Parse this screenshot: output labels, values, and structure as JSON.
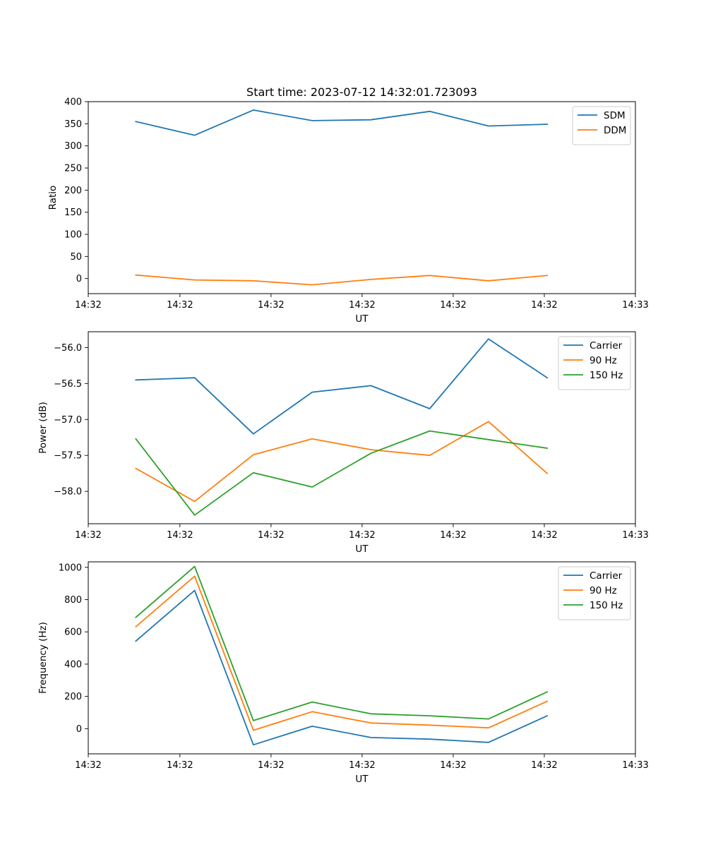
{
  "colors": {
    "blue": "#1f77b4",
    "orange": "#ff7f0e",
    "green": "#2ca02c"
  },
  "chart_data": [
    {
      "type": "line",
      "title": "Start time: 2023-07-12 14:32:01.723093",
      "xlabel": "UT",
      "ylabel": "Ratio",
      "x": [
        1,
        2,
        3,
        4,
        5,
        6,
        7,
        8
      ],
      "xlim": [
        0.19,
        9.5
      ],
      "xticks": [
        0.19,
        1.75,
        3.3,
        4.85,
        6.4,
        7.95,
        9.5
      ],
      "xtick_labels": [
        "14:32",
        "14:32",
        "14:32",
        "14:32",
        "14:32",
        "14:32",
        "14:33"
      ],
      "ylim": [
        -34,
        400
      ],
      "yticks": [
        0,
        50,
        100,
        150,
        200,
        250,
        300,
        350,
        400
      ],
      "ytick_labels": [
        "0",
        "50",
        "100",
        "150",
        "200",
        "250",
        "300",
        "350",
        "400"
      ],
      "legend_position": "top-right",
      "series": [
        {
          "name": "SDM",
          "color": "#1f77b4",
          "values": [
            355,
            324,
            381,
            357,
            359,
            378,
            345,
            349
          ]
        },
        {
          "name": "DDM",
          "color": "#ff7f0e",
          "values": [
            8,
            -3,
            -5,
            -14,
            -2,
            7,
            -5,
            7
          ]
        }
      ]
    },
    {
      "type": "line",
      "title": "",
      "xlabel": "UT",
      "ylabel": "Power (dB)",
      "x": [
        1,
        2,
        3,
        4,
        5,
        6,
        7,
        8
      ],
      "xlim": [
        0.19,
        9.5
      ],
      "xticks": [
        0.19,
        1.75,
        3.3,
        4.85,
        6.4,
        7.95,
        9.5
      ],
      "xtick_labels": [
        "14:32",
        "14:32",
        "14:32",
        "14:32",
        "14:32",
        "14:32",
        "14:33"
      ],
      "ylim": [
        -58.45,
        -55.78
      ],
      "yticks": [
        -58.0,
        -57.5,
        -57.0,
        -56.5,
        -56.0
      ],
      "ytick_labels": [
        "−58.0",
        "−57.5",
        "−57.0",
        "−56.5",
        "−56.0"
      ],
      "legend_position": "top-right",
      "series": [
        {
          "name": "Carrier",
          "color": "#1f77b4",
          "values": [
            -56.45,
            -56.42,
            -57.2,
            -56.62,
            -56.53,
            -56.85,
            -55.88,
            -56.42
          ]
        },
        {
          "name": "90 Hz",
          "color": "#ff7f0e",
          "values": [
            -57.68,
            -58.14,
            -57.49,
            -57.27,
            -57.42,
            -57.5,
            -57.03,
            -57.75
          ]
        },
        {
          "name": "150 Hz",
          "color": "#2ca02c",
          "values": [
            -57.27,
            -58.33,
            -57.74,
            -57.94,
            -57.47,
            -57.16,
            -57.28,
            -57.4
          ]
        }
      ]
    },
    {
      "type": "line",
      "title": "",
      "xlabel": "UT",
      "ylabel": "Frequency (Hz)",
      "x": [
        1,
        2,
        3,
        4,
        5,
        6,
        7,
        8
      ],
      "xlim": [
        0.19,
        9.5
      ],
      "xticks": [
        0.19,
        1.75,
        3.3,
        4.85,
        6.4,
        7.95,
        9.5
      ],
      "xtick_labels": [
        "14:32",
        "14:32",
        "14:32",
        "14:32",
        "14:32",
        "14:32",
        "14:33"
      ],
      "ylim": [
        -156,
        1034
      ],
      "yticks": [
        0,
        200,
        400,
        600,
        800,
        1000
      ],
      "ytick_labels": [
        "0",
        "200",
        "400",
        "600",
        "800",
        "1000"
      ],
      "legend_position": "top-right",
      "series": [
        {
          "name": "Carrier",
          "color": "#1f77b4",
          "values": [
            543,
            857,
            -100,
            15,
            -55,
            -65,
            -85,
            80
          ]
        },
        {
          "name": "90 Hz",
          "color": "#ff7f0e",
          "values": [
            632,
            945,
            -10,
            105,
            35,
            22,
            5,
            170
          ]
        },
        {
          "name": "150 Hz",
          "color": "#2ca02c",
          "values": [
            690,
            1005,
            50,
            165,
            92,
            80,
            60,
            228
          ]
        }
      ]
    }
  ]
}
